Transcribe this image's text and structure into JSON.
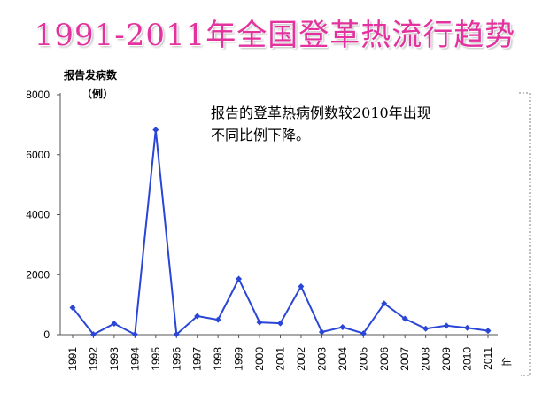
{
  "slide": {
    "title": "1991-2011年全国登革热流行趋势"
  },
  "chart_data": {
    "type": "line",
    "x": [
      "1991",
      "1992",
      "1993",
      "1994",
      "1995",
      "1996",
      "1997",
      "1998",
      "1999",
      "2000",
      "2001",
      "2002",
      "2003",
      "2004",
      "2005",
      "2006",
      "2007",
      "2008",
      "2009",
      "2010",
      "2011"
    ],
    "series": [
      {
        "values": [
          900,
          10,
          370,
          10,
          6830,
          10,
          620,
          500,
          1860,
          410,
          380,
          1610,
          90,
          250,
          40,
          1040,
          530,
          200,
          300,
          230,
          130
        ]
      }
    ],
    "ylabel_lines": [
      "报告发病数",
      "（例）"
    ],
    "x_unit": "年",
    "yticks": [
      "0",
      "2000",
      "4000",
      "6000",
      "8000"
    ],
    "ylim": [
      0,
      8000
    ],
    "annotation_lines": [
      "报告的登革热病例数较2010年出现",
      "不同比例下降。"
    ],
    "line_color": "#2a46d6",
    "grid": false
  }
}
